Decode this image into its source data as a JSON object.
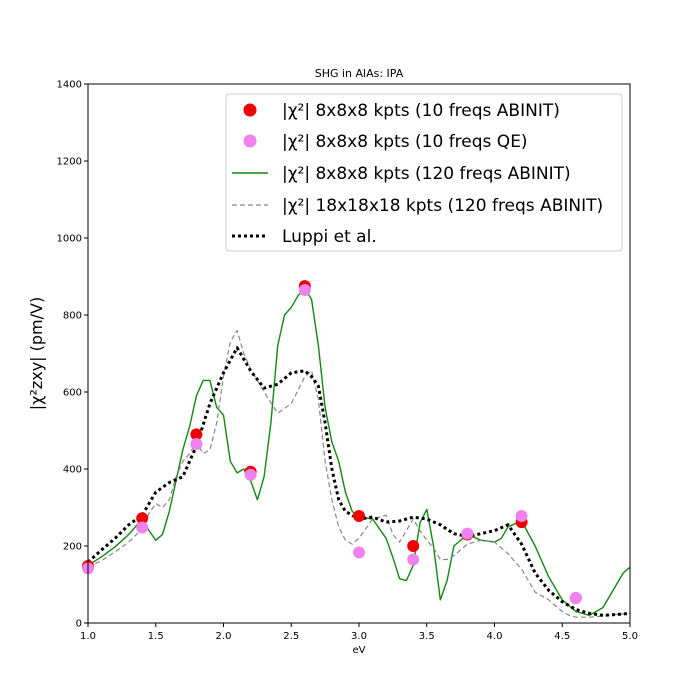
{
  "chart_data": {
    "type": "line",
    "title": "SHG in AlAs: IPA",
    "xlabel": "eV",
    "ylabel": "|χ²zxy| (pm/V)",
    "xlim": [
      1.0,
      5.0
    ],
    "ylim": [
      0,
      1400
    ],
    "xticks": [
      "1.0",
      "1.5",
      "2.0",
      "2.5",
      "3.0",
      "3.5",
      "4.0",
      "4.5",
      "5.0"
    ],
    "yticks": [
      "0",
      "200",
      "400",
      "600",
      "800",
      "1000",
      "1200",
      "1400"
    ],
    "grid": false,
    "legend_position": "top-right",
    "series": [
      {
        "name": "|χ²| 8x8x8 kpts (10 freqs ABINIT)",
        "style": "markers",
        "color": "#ee0000",
        "x": [
          1.0,
          1.4,
          1.8,
          2.2,
          2.6,
          3.0,
          3.4,
          3.8,
          4.2,
          4.6
        ],
        "y": [
          148,
          272,
          490,
          393,
          875,
          278,
          200,
          230,
          262,
          65
        ]
      },
      {
        "name": "|χ²| 8x8x8 kpts (10 freqs QE)",
        "style": "markers",
        "color": "#ee82ee",
        "x": [
          1.0,
          1.4,
          1.8,
          2.2,
          2.6,
          3.0,
          3.4,
          3.8,
          4.2,
          4.6
        ],
        "y": [
          142,
          248,
          465,
          385,
          865,
          183,
          165,
          232,
          278,
          65
        ]
      },
      {
        "name": "|χ²| 8x8x8 kpts (120 freqs ABINIT)",
        "style": "solid",
        "color": "#118811",
        "x": [
          1.0,
          1.1,
          1.2,
          1.3,
          1.4,
          1.45,
          1.5,
          1.55,
          1.6,
          1.65,
          1.7,
          1.75,
          1.8,
          1.85,
          1.9,
          1.95,
          2.0,
          2.05,
          2.1,
          2.15,
          2.2,
          2.25,
          2.3,
          2.35,
          2.4,
          2.45,
          2.5,
          2.55,
          2.6,
          2.65,
          2.7,
          2.75,
          2.8,
          2.85,
          2.9,
          2.95,
          3.0,
          3.1,
          3.2,
          3.25,
          3.3,
          3.35,
          3.4,
          3.45,
          3.5,
          3.55,
          3.6,
          3.65,
          3.7,
          3.8,
          3.9,
          4.0,
          4.05,
          4.1,
          4.2,
          4.3,
          4.4,
          4.5,
          4.6,
          4.7,
          4.8,
          4.9,
          4.95,
          5.0
        ],
        "y": [
          150,
          172,
          198,
          230,
          270,
          240,
          215,
          230,
          290,
          370,
          450,
          510,
          590,
          630,
          630,
          560,
          540,
          420,
          390,
          400,
          370,
          320,
          380,
          520,
          720,
          800,
          820,
          850,
          870,
          840,
          720,
          560,
          470,
          420,
          340,
          290,
          275,
          270,
          220,
          170,
          115,
          110,
          150,
          260,
          295,
          200,
          60,
          110,
          200,
          230,
          215,
          210,
          220,
          250,
          265,
          200,
          120,
          60,
          30,
          20,
          40,
          100,
          130,
          145
        ]
      },
      {
        "name": "|χ²| 18x18x18 kpts (120 freqs ABINIT)",
        "style": "dashed",
        "color": "#888888",
        "x": [
          1.0,
          1.1,
          1.2,
          1.3,
          1.4,
          1.45,
          1.5,
          1.55,
          1.6,
          1.65,
          1.7,
          1.75,
          1.8,
          1.85,
          1.9,
          1.95,
          2.0,
          2.05,
          2.1,
          2.15,
          2.2,
          2.3,
          2.4,
          2.5,
          2.6,
          2.65,
          2.7,
          2.75,
          2.8,
          2.85,
          2.9,
          2.95,
          3.0,
          3.1,
          3.2,
          3.25,
          3.3,
          3.35,
          3.4,
          3.45,
          3.5,
          3.55,
          3.6,
          3.65,
          3.7,
          3.8,
          3.9,
          4.0,
          4.1,
          4.2,
          4.3,
          4.4,
          4.5,
          4.55,
          4.6,
          4.7,
          4.8,
          4.9,
          5.0
        ],
        "y": [
          145,
          162,
          185,
          210,
          245,
          285,
          310,
          300,
          320,
          380,
          420,
          440,
          470,
          440,
          450,
          520,
          640,
          730,
          760,
          700,
          660,
          600,
          545,
          570,
          640,
          655,
          580,
          420,
          320,
          250,
          215,
          205,
          220,
          270,
          280,
          230,
          210,
          240,
          270,
          240,
          215,
          195,
          165,
          165,
          175,
          205,
          215,
          210,
          180,
          140,
          80,
          60,
          30,
          20,
          15,
          15,
          18,
          22,
          25
        ]
      },
      {
        "name": "Luppi et al.",
        "style": "dotted",
        "color": "#000000",
        "x": [
          1.0,
          1.1,
          1.2,
          1.3,
          1.4,
          1.5,
          1.6,
          1.7,
          1.8,
          1.9,
          2.0,
          2.1,
          2.2,
          2.3,
          2.4,
          2.5,
          2.6,
          2.65,
          2.7,
          2.75,
          2.8,
          2.85,
          2.9,
          3.0,
          3.1,
          3.2,
          3.3,
          3.4,
          3.5,
          3.6,
          3.7,
          3.8,
          3.9,
          4.0,
          4.1,
          4.2,
          4.3,
          4.4,
          4.5,
          4.6,
          4.7,
          4.8,
          4.9,
          5.0
        ],
        "y": [
          158,
          190,
          220,
          255,
          280,
          340,
          365,
          380,
          460,
          570,
          650,
          715,
          655,
          610,
          620,
          650,
          655,
          640,
          615,
          520,
          400,
          320,
          290,
          270,
          275,
          262,
          265,
          275,
          270,
          255,
          232,
          225,
          232,
          240,
          255,
          205,
          130,
          85,
          55,
          35,
          25,
          20,
          22,
          25
        ]
      }
    ]
  }
}
